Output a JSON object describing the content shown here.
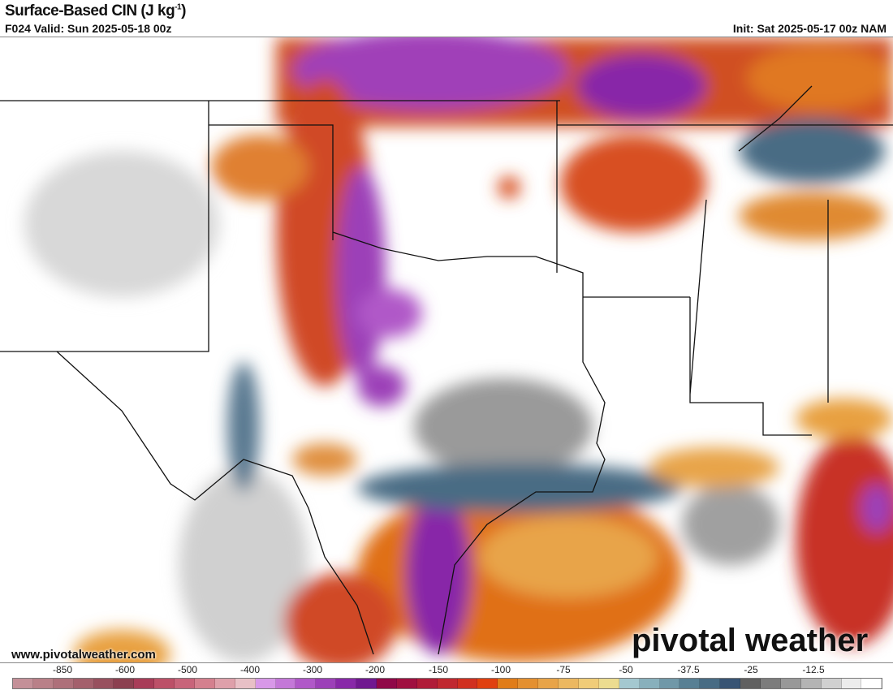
{
  "header": {
    "title": "Surface-Based CIN (J kg",
    "title_sup": "-1",
    "title_end": ")",
    "valid": "F024 Valid: Sun 2025-05-18 00z",
    "init": "Init: Sat 2025-05-17 00z NAM"
  },
  "footer": {
    "url": "www.pivotalweather.com",
    "logo": "pivotal weather"
  },
  "colorbar": {
    "labels": [
      "-850",
      "-600",
      "-500",
      "-400",
      "-300",
      "-200",
      "-150",
      "-100",
      "-75",
      "-50",
      "-37.5",
      "-25",
      "-12.5"
    ],
    "colors": [
      "#c49098",
      "#b98088",
      "#ae707a",
      "#a4606c",
      "#98505e",
      "#8c4050",
      "#a83c58",
      "#bc5068",
      "#c8647a",
      "#d4808e",
      "#dea0aa",
      "#e8c0c6",
      "#d898e8",
      "#c478d8",
      "#b058c8",
      "#9c40b8",
      "#8828a8",
      "#701890",
      "#900848",
      "#a01040",
      "#b01c38",
      "#c02830",
      "#d03020",
      "#e04010",
      "#e07c18",
      "#e49030",
      "#e8a448",
      "#ecb860",
      "#f0cc78",
      "#ecdc90",
      "#a4c8d0",
      "#88b0bc",
      "#7098a8",
      "#588094",
      "#486c84",
      "#385474",
      "#606060",
      "#7c7c7c",
      "#989898",
      "#b4b4b4",
      "#d0d0d0",
      "#ececec",
      "#ffffff"
    ]
  },
  "map": {
    "region": "Southern Plains / Texas"
  }
}
